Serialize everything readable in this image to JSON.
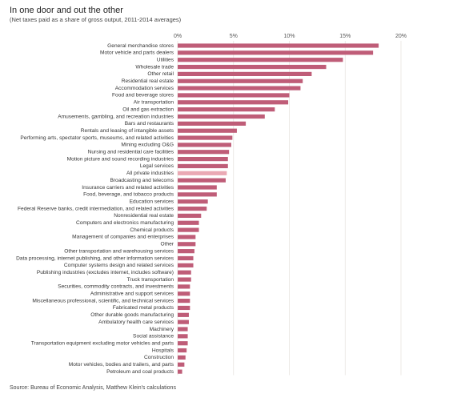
{
  "chart_data": {
    "type": "bar",
    "orientation": "horizontal",
    "title": "In one door and out the other",
    "subtitle": "(Net taxes paid as a share of gross output, 2011-2014 averages)",
    "source": "Source: Bureau of Economic Analysis, Matthew Klein's calculations",
    "categories": [
      "General merchandise stores",
      "Motor vehicle and parts dealers",
      "Utilities",
      "Wholesale trade",
      "Other retail",
      "Residential real estate",
      "Accommodation services",
      "Food and beverage stores",
      "Air transportation",
      "Oil and gas extraction",
      "Amusements, gambling, and recreation industries",
      "Bars and restaurants",
      "Rentals and leasing of intangible assets",
      "Performing arts, spectator sports, museums, and related activities",
      "Mining excluding O&G",
      "Nursing and residential care facilities",
      "Motion picture and sound recording industries",
      "Legal services",
      "All private industries",
      "Broadcasting and telecoms",
      "Insurance carriers and related activities",
      "Food, beverage, and tobacco products",
      "Education services",
      "Federal Reserve banks, credit intermediation, and related activities",
      "Nonresidential real estate",
      "Computers and electronics manufacturing",
      "Chemical products",
      "Management of companies and enterprises",
      "Other",
      "Other transportation and warehousing services",
      "Data processing, internet publishing, and other information services",
      "Computer systems design and related services",
      "Publishing industries (excludes internet, includes software)",
      "Truck transportation",
      "Securities, commodity contracts, and investments",
      "Administrative and support services",
      "Miscellaneous professional, scientific, and technical services",
      "Fabricated metal products",
      "Other durable goods manufacturing",
      "Ambulatory health care services",
      "Machinery",
      "Social assistance",
      "Transportation equipment excluding motor vehicles and parts",
      "Hospitals",
      "Construction",
      "Motor vehicles, bodies and trailers, and parts",
      "Petroleum and coal products"
    ],
    "values": [
      18.0,
      17.5,
      14.8,
      13.3,
      12.0,
      11.2,
      11.0,
      10.0,
      9.9,
      8.7,
      7.8,
      6.1,
      5.3,
      4.9,
      4.8,
      4.6,
      4.5,
      4.5,
      4.4,
      4.3,
      3.5,
      3.5,
      2.7,
      2.6,
      2.1,
      1.9,
      1.9,
      1.6,
      1.6,
      1.5,
      1.4,
      1.4,
      1.2,
      1.2,
      1.1,
      1.1,
      1.1,
      1.1,
      1.0,
      1.0,
      0.9,
      0.9,
      0.9,
      0.8,
      0.7,
      0.6,
      0.4
    ],
    "colors": [
      "#bf5d78",
      "#bf5d78",
      "#bf5d78",
      "#bf5d78",
      "#bf5d78",
      "#bf5d78",
      "#bf5d78",
      "#bf5d78",
      "#bf5d78",
      "#bf5d78",
      "#bf5d78",
      "#bf5d78",
      "#bf5d78",
      "#bf5d78",
      "#bf5d78",
      "#bf5d78",
      "#bf5d78",
      "#bf5d78",
      "#eaa9b4",
      "#bf5d78",
      "#bf5d78",
      "#bf5d78",
      "#bf5d78",
      "#bf5d78",
      "#bf5d78",
      "#bf5d78",
      "#bf5d78",
      "#bf5d78",
      "#bf5d78",
      "#bf5d78",
      "#bf5d78",
      "#bf5d78",
      "#bf5d78",
      "#bf5d78",
      "#bf5d78",
      "#bf5d78",
      "#bf5d78",
      "#bf5d78",
      "#bf5d78",
      "#bf5d78",
      "#bf5d78",
      "#bf5d78",
      "#bf5d78",
      "#bf5d78",
      "#bf5d78",
      "#bf5d78",
      "#bf5d78"
    ],
    "xlim": [
      0,
      20
    ],
    "xticks": [
      {
        "value": 0,
        "label": "0%"
      },
      {
        "value": 5,
        "label": "5%"
      },
      {
        "value": 10,
        "label": "10%"
      },
      {
        "value": 15,
        "label": "15%"
      },
      {
        "value": 20,
        "label": "20%"
      }
    ],
    "grid": true
  }
}
